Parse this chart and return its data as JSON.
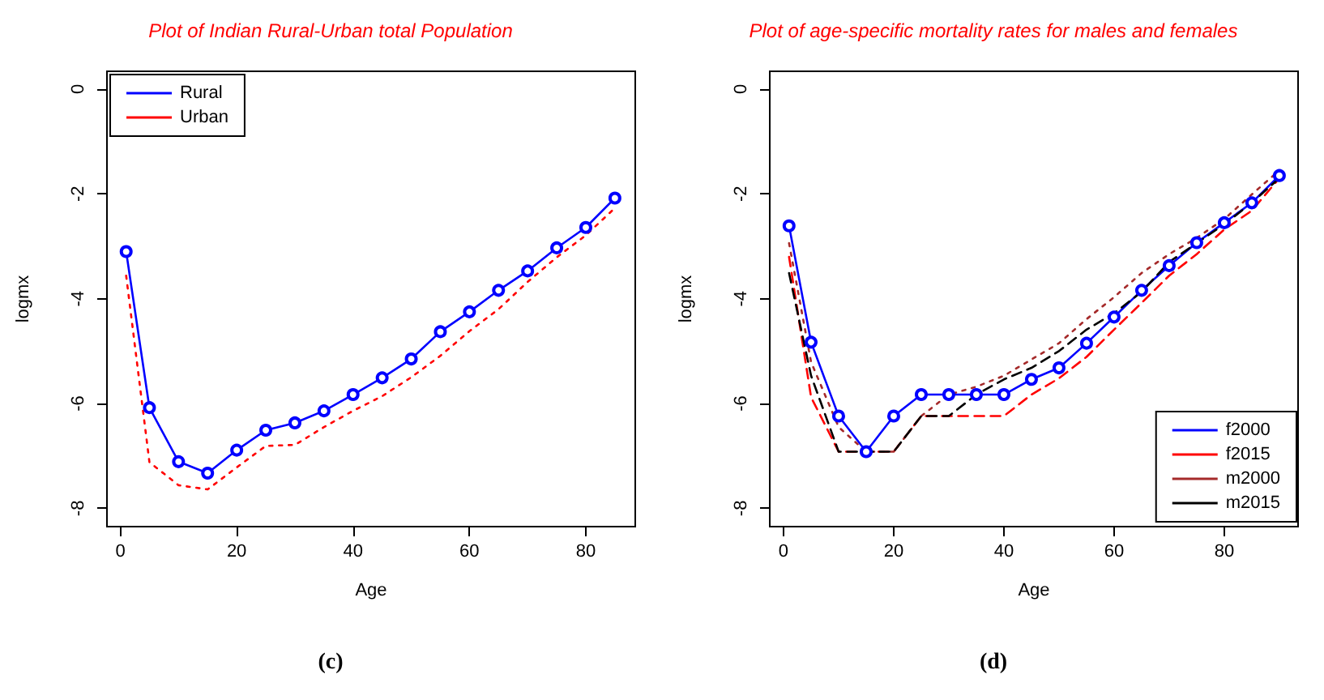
{
  "chart_data": [
    {
      "type": "line",
      "title": "Plot of Indian Rural-Urban total Population",
      "xlabel": "Age",
      "ylabel": "logmx",
      "annotations": [
        "(c)"
      ],
      "xlim": [
        -2.3,
        88.5
      ],
      "ylim": [
        -8.35,
        0.34
      ],
      "xticks": [
        0,
        20,
        40,
        60,
        80
      ],
      "yticks": [
        0,
        -2,
        -4,
        -6,
        -8
      ],
      "grid": false,
      "legend": "top left",
      "x": [
        1,
        5,
        10,
        15,
        20,
        25,
        30,
        35,
        40,
        45,
        50,
        55,
        60,
        65,
        70,
        75,
        80,
        85
      ],
      "series": [
        {
          "name": "Rural",
          "color": "#0000ff",
          "line_style": "solid",
          "marker": "circle",
          "values": [
            -3.1,
            -6.08,
            -7.11,
            -7.33,
            -6.89,
            -6.51,
            -6.37,
            -6.14,
            -5.83,
            -5.51,
            -5.15,
            -4.63,
            -4.25,
            -3.84,
            -3.47,
            -3.03,
            -2.64,
            -2.08
          ]
        },
        {
          "name": "Urban",
          "color": "#ff0000",
          "line_style": "dotted",
          "marker": "none",
          "values": [
            -3.56,
            -7.12,
            -7.56,
            -7.64,
            -7.22,
            -6.81,
            -6.79,
            -6.45,
            -6.14,
            -5.86,
            -5.5,
            -5.09,
            -4.62,
            -4.2,
            -3.68,
            -3.21,
            -2.79,
            -2.27
          ]
        }
      ]
    },
    {
      "type": "line",
      "title": "Plot of age-specific mortality rates for males and females",
      "xlabel": "Age",
      "ylabel": "logmx",
      "annotations": [
        "(d)"
      ],
      "xlim": [
        -2.5,
        93.4
      ],
      "ylim": [
        -8.35,
        0.34
      ],
      "xticks": [
        0,
        20,
        40,
        60,
        80
      ],
      "yticks": [
        0,
        -2,
        -4,
        -6,
        -8
      ],
      "grid": false,
      "legend": "bottom right",
      "x": [
        1,
        5,
        10,
        15,
        20,
        25,
        30,
        35,
        40,
        45,
        50,
        55,
        60,
        65,
        70,
        75,
        80,
        85,
        90
      ],
      "series": [
        {
          "name": "f2000",
          "color": "#0000ff",
          "line_style": "solid",
          "marker": "circle",
          "values": [
            -2.61,
            -4.83,
            -6.24,
            -6.92,
            -6.24,
            -5.83,
            -5.83,
            -5.83,
            -5.83,
            -5.54,
            -5.32,
            -4.85,
            -4.35,
            -3.84,
            -3.37,
            -2.93,
            -2.55,
            -2.17,
            -1.65
          ]
        },
        {
          "name": "f2015",
          "color": "#ff0000",
          "line_style": "dashed",
          "marker": "none",
          "values": [
            -3.2,
            -5.88,
            -6.92,
            -6.92,
            -6.92,
            -6.24,
            -6.24,
            -6.24,
            -6.24,
            -5.83,
            -5.52,
            -5.11,
            -4.59,
            -4.08,
            -3.56,
            -3.15,
            -2.68,
            -2.32,
            -1.7
          ]
        },
        {
          "name": "m2000",
          "color": "#a52a2a",
          "line_style": "dotted",
          "marker": "none",
          "values": [
            -2.94,
            -5.21,
            -6.45,
            -6.92,
            -6.92,
            -6.24,
            -5.83,
            -5.68,
            -5.47,
            -5.16,
            -4.85,
            -4.39,
            -3.97,
            -3.51,
            -3.15,
            -2.84,
            -2.48,
            -2.01,
            -1.55
          ]
        },
        {
          "name": "m2015",
          "color": "#000000",
          "line_style": "dashed",
          "marker": "none",
          "values": [
            -3.51,
            -5.47,
            -6.92,
            -6.92,
            -6.92,
            -6.24,
            -6.24,
            -5.83,
            -5.54,
            -5.32,
            -5.0,
            -4.59,
            -4.28,
            -3.87,
            -3.3,
            -2.94,
            -2.58,
            -2.17,
            -1.7
          ]
        }
      ]
    }
  ]
}
